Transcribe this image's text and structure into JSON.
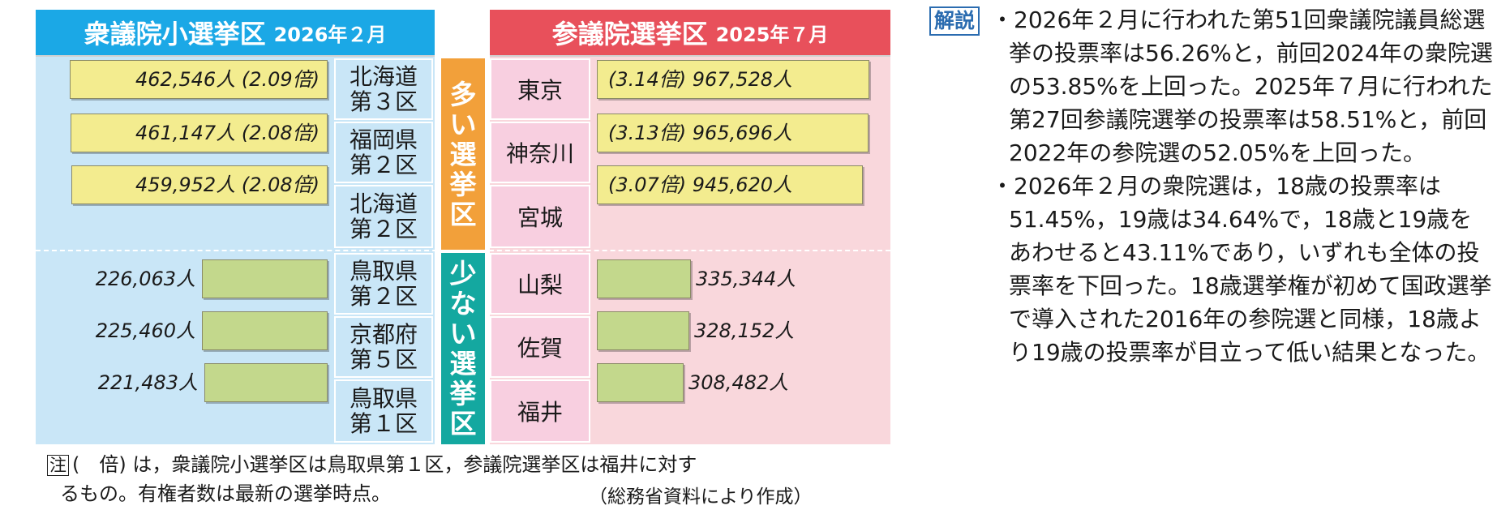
{
  "chart_data": {
    "type": "bar",
    "shugiin": {
      "header": "衆議院小選挙区",
      "date": "2026年２月",
      "many": [
        {
          "district": [
            "北海道",
            "第３区"
          ],
          "voters": "462,546人",
          "ratio": "(2.09倍)",
          "value": 462546
        },
        {
          "district": [
            "福岡県",
            "第２区"
          ],
          "voters": "461,147人",
          "ratio": "(2.08倍)",
          "value": 461147
        },
        {
          "district": [
            "北海道",
            "第２区"
          ],
          "voters": "459,952人",
          "ratio": "(2.08倍)",
          "value": 459952
        }
      ],
      "few": [
        {
          "district": [
            "鳥取県",
            "第２区"
          ],
          "voters": "226,063人",
          "value": 226063
        },
        {
          "district": [
            "京都府",
            "第５区"
          ],
          "voters": "225,460人",
          "value": 225460
        },
        {
          "district": [
            "鳥取県",
            "第１区"
          ],
          "voters": "221,483人",
          "value": 221483
        }
      ]
    },
    "sangiin": {
      "header": "参議院選挙区",
      "date": "2025年７月",
      "many": [
        {
          "district": "東京",
          "voters": "967,528人",
          "ratio": "(3.14倍)",
          "value": 967528
        },
        {
          "district": "神奈川",
          "voters": "965,696人",
          "ratio": "(3.13倍)",
          "value": 965696
        },
        {
          "district": "宮城",
          "voters": "945,620人",
          "ratio": "(3.07倍)",
          "value": 945620
        }
      ],
      "few": [
        {
          "district": "山梨",
          "voters": "335,344人",
          "value": 335344
        },
        {
          "district": "佐賀",
          "voters": "328,152人",
          "value": 328152
        },
        {
          "district": "福井",
          "voters": "308,482人",
          "value": 308482
        }
      ]
    },
    "labels": {
      "many": [
        "多",
        "い",
        "選",
        "挙",
        "区"
      ],
      "few": [
        "少",
        "な",
        "い",
        "選",
        "挙",
        "区"
      ]
    }
  },
  "note": {
    "mark": "注",
    "line1": "(　倍) は，衆議院小選挙区は鳥取県第１区，参議院選挙区は福井に対す",
    "line2": "るもの。有権者数は最新の選挙時点。",
    "source": "（総務省資料により作成）"
  },
  "kaisetsu": {
    "tag": "解説",
    "paragraphs": [
      "・2026年２月に行われた第51回衆議院議員総選挙の投票率は56.26%と，前回2024年の衆院選の53.85%を上回った。2025年７月に行われた第27回参議院選挙の投票率は58.51%と，前回2022年の参院選の52.05%を上回った。",
      "・2026年２月の衆院選は，18歳の投票率は51.45%，19歳は34.64%で，18歳と19歳をあわせると43.11%であり，いずれも全体の投票率を下回った。18歳選挙権が初めて国政選挙で導入された2016年の参院選と同様，18歳より19歳の投票率が目立って低い結果となった。"
    ]
  },
  "colors": {
    "shugiin_header": "#1ba8e6",
    "sangiin_header": "#e8505b",
    "many_label": "#f2a03a",
    "few_label": "#14a8a0"
  }
}
